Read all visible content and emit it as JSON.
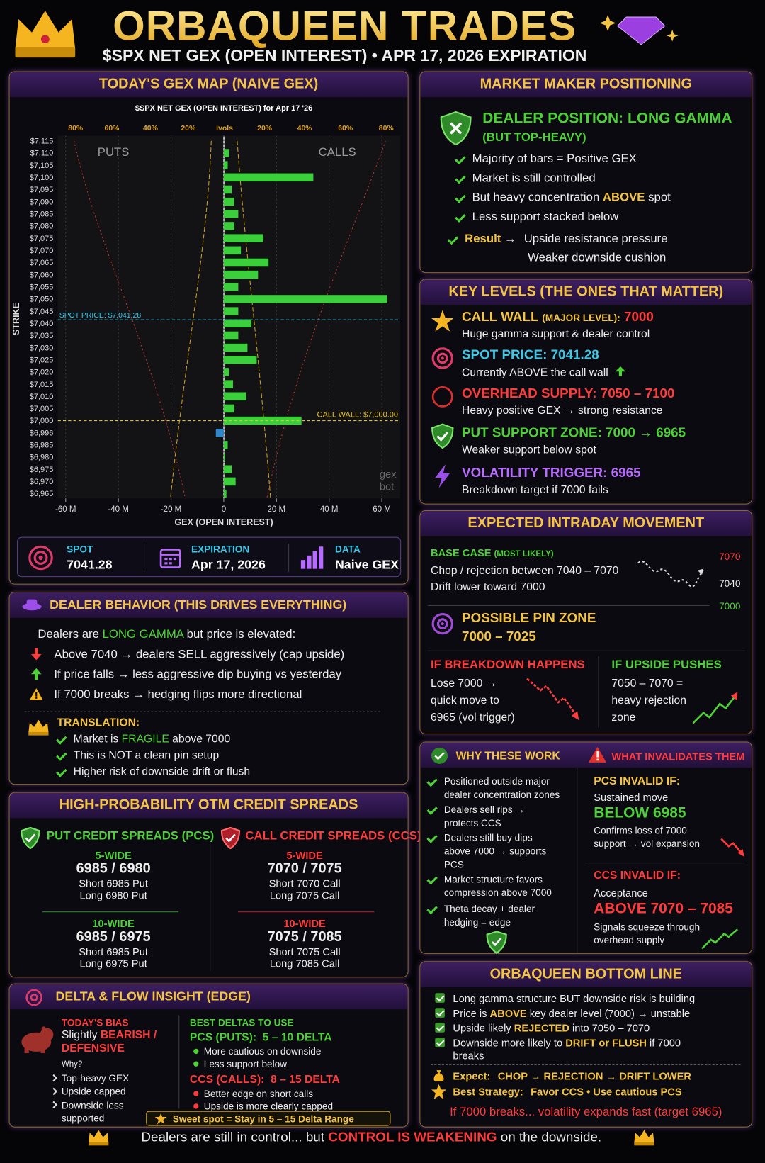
{
  "header": {
    "title": "ORBAQUEEN TRADES",
    "subtitle": "$SPX NET GEX (OPEN INTEREST) • APR 17, 2026 EXPIRATION"
  },
  "gex_map": {
    "heading": "TODAY'S GEX MAP (NAIVE GEX)",
    "stats": [
      {
        "label": "SPOT",
        "value": "7041.28"
      },
      {
        "label": "EXPIRATION",
        "value": "Apr 17, 2026"
      },
      {
        "label": "DATA",
        "value": "Naive GEX"
      }
    ]
  },
  "chart_data": {
    "type": "bar",
    "orientation": "horizontal",
    "title": "$SPX NET GEX (OPEN INTEREST) for Apr 17 '26",
    "y_label": "STRIKE",
    "x_label": "GEX (OPEN INTEREST)",
    "top_axis_labels": [
      "80%",
      "60%",
      "40%",
      "20%",
      "ivols",
      "20%",
      "40%",
      "60%",
      "80%"
    ],
    "categories": [
      "$7,115",
      "$7,110",
      "$7,105",
      "$7,100",
      "$7,095",
      "$7,090",
      "$7,085",
      "$7,080",
      "$7,075",
      "$7,070",
      "$7,065",
      "$7,060",
      "$7,055",
      "$7,050",
      "$7,045",
      "$7,040",
      "$7,035",
      "$7,030",
      "$7,025",
      "$7,020",
      "$7,015",
      "$7,010",
      "$7,005",
      "$7,000",
      "$6,996",
      "$6,985",
      "$6,980",
      "$6,975",
      "$6,970",
      "$6,965"
    ],
    "series": [
      {
        "color": "#3ccf3c",
        "negative_color": "#2f86c8",
        "values": [
          0,
          2,
          1.5,
          34,
          3,
          4,
          5.5,
          4,
          15,
          6.5,
          17,
          13,
          5.5,
          62,
          5.5,
          10.5,
          5.5,
          9,
          12.5,
          2,
          3.5,
          8.5,
          4,
          29.5,
          -3,
          1.5,
          0.5,
          3,
          4.5,
          1
        ]
      }
    ],
    "xlim": [
      -63,
      67
    ],
    "xticks": [
      {
        "value": -60,
        "label": "-60 M"
      },
      {
        "value": -40,
        "label": "-40 M"
      },
      {
        "value": -20,
        "label": "-20 M"
      },
      0,
      {
        "value": 20,
        "label": "20 M"
      },
      {
        "value": 40,
        "label": "40 M"
      },
      {
        "value": 60,
        "label": "60 M"
      }
    ],
    "grid": true,
    "annotations": {
      "puts": "PUTS",
      "calls": "CALLS",
      "spot": "SPOT PRICE: $7,041.28",
      "call_wall": "CALL WALL: $7,000.00"
    },
    "watermark": [
      "gex",
      "bot"
    ]
  },
  "market_maker": {
    "heading": "MARKET MAKER POSITIONING",
    "position": "DEALER POSITION: LONG GAMMA",
    "position_note": "(BUT TOP-HEAVY)",
    "items": [
      "Majority of bars = Positive GEX",
      "Market is still controlled",
      [
        "But heavy concentration ",
        "ABOVE",
        " spot"
      ],
      "Less support stacked below"
    ],
    "result": {
      "label": "Result",
      "arrow": "→",
      "lines": [
        "Upside resistance pressure",
        "Weaker downside cushion"
      ]
    }
  },
  "key_levels": {
    "heading": "KEY LEVELS (THE ONES THAT MATTER)",
    "items": [
      {
        "title": "CALL WALL",
        "qualifier": "(MAJOR LEVEL):",
        "value": "7000",
        "desc": "Huge gamma support & dealer control"
      },
      {
        "title": "SPOT PRICE: 7041.28",
        "desc": "Currently ABOVE the call wall"
      },
      {
        "title": "OVERHEAD SUPPLY: 7050 – 7100",
        "desc": "Heavy positive GEX → strong resistance"
      },
      {
        "title": "PUT SUPPORT ZONE: 7000 → 6965",
        "desc": "Weaker support below spot"
      },
      {
        "title": "VOLATILITY TRIGGER: 6965",
        "desc": "Breakdown target if 7000 fails"
      }
    ]
  },
  "expected": {
    "heading": "EXPECTED INTRADAY MOVEMENT",
    "base_case": "BASE CASE",
    "base_note": "(MOST LIKELY)",
    "base_lines": [
      "Chop / rejection between 7040 – 7070",
      "Drift lower toward 7000"
    ],
    "sketch_labels": [
      "7070",
      "7040",
      "7000"
    ],
    "pin_title": "POSSIBLE PIN ZONE",
    "pin_range": "7000 – 7025",
    "breakdown": {
      "title": "IF BREAKDOWN HAPPENS",
      "lines": [
        "Lose 7000 →",
        "quick move to",
        "6965 (vol trigger)"
      ]
    },
    "upside": {
      "title": "IF UPSIDE PUSHES",
      "lines": [
        "7050 – 7070 =",
        "heavy rejection",
        "zone"
      ]
    }
  },
  "dealer_behavior": {
    "heading": "DEALER BEHAVIOR (THIS DRIVES EVERYTHING)",
    "intro": [
      "Dealers are ",
      "LONG GAMMA",
      " but price is elevated:"
    ],
    "items": [
      "Above 7040 → dealers SELL aggressively (cap upside)",
      "If price falls → less aggressive dip buying vs yesterday",
      "If 7000 breaks → hedging flips more directional"
    ],
    "translation": "TRANSLATION:",
    "translation_items": [
      [
        "Market is ",
        "FRAGILE",
        " above 7000"
      ],
      "This is NOT a clean pin setup",
      "Higher risk of downside drift or flush"
    ]
  },
  "spreads": {
    "heading": "HIGH-PROBABILITY OTM CREDIT SPREADS",
    "pcs": {
      "title": "PUT CREDIT SPREADS (PCS)",
      "groups": [
        {
          "width": "5-WIDE",
          "strikes": "6985 / 6980",
          "short": "Short 6985 Put",
          "long": "Long 6980 Put"
        },
        {
          "width": "10-WIDE",
          "strikes": "6985 / 6975",
          "short": "Short 6985 Put",
          "long": "Long 6975 Put"
        }
      ]
    },
    "ccs": {
      "title": "CALL CREDIT SPREADS (CCS)",
      "groups": [
        {
          "width": "5-WIDE",
          "strikes": "7070 / 7075",
          "short": "Short 7070 Call",
          "long": "Long 7075 Call"
        },
        {
          "width": "10-WIDE",
          "strikes": "7075 / 7085",
          "short": "Short 7075 Call",
          "long": "Long 7085 Call"
        }
      ]
    }
  },
  "why": {
    "heading": "WHY THESE WORK",
    "items": [
      "Positioned outside major dealer concentration zones",
      "Dealers sell rips → protects CCS",
      "Dealers still buy dips above 7000 → supports PCS",
      "Market structure favors compression above 7000",
      "Theta decay + dealer hedging = edge"
    ]
  },
  "invalidation": {
    "heading": "WHAT INVALIDATES THEM",
    "pcs": {
      "title": "PCS INVALID IF:",
      "pre": "Sustained move",
      "level": "BELOW 6985",
      "post": "Confirms loss of 7000 support → vol expansion"
    },
    "ccs": {
      "title": "CCS INVALID IF:",
      "pre": "Acceptance",
      "level": "ABOVE 7070 – 7085",
      "post": "Signals squeeze through overhead supply"
    }
  },
  "delta": {
    "heading": "DELTA & FLOW INSIGHT (EDGE)",
    "bias_title": "TODAY'S BIAS",
    "bias": [
      "Slightly ",
      "BEARISH / DEFENSIVE"
    ],
    "why": "Why?",
    "why_items": [
      "Top-heavy GEX",
      "Upside capped",
      "Downside less supported"
    ],
    "best_title": "BEST DELTAS TO USE",
    "pcs": {
      "title": "PCS (PUTS):",
      "range": "5 – 10 DELTA",
      "items": [
        "More cautious on downside",
        "Less support below"
      ]
    },
    "ccs": {
      "title": "CCS (CALLS):",
      "range": "8 – 15 DELTA",
      "items": [
        "Better edge on short calls",
        "Upside is more clearly capped"
      ]
    },
    "sweet": "Sweet spot = Stay in 5 – 15 Delta Range"
  },
  "bottom_line": {
    "heading": "ORBAQUEEN BOTTOM LINE",
    "items": [
      [
        "Long gamma structure BUT downside risk is building"
      ],
      [
        "Price is ",
        "ABOVE",
        " key dealer level (7000) → unstable"
      ],
      [
        "Upside likely ",
        "REJECTED",
        " into 7050 – 7070"
      ],
      [
        "Downside more likely to ",
        "DRIFT or FLUSH",
        " if 7000 breaks"
      ]
    ],
    "expect": {
      "label": "Expect:",
      "text": "CHOP → REJECTION → DRIFT LOWER"
    },
    "strategy": {
      "label": "Best Strategy:",
      "text": "Favor CCS • Use cautious PCS"
    },
    "warning": "If 7000 breaks... volatility expands fast (target 6965)"
  },
  "footer": [
    "Dealers are still in control... but ",
    "CONTROL IS WEAKENING",
    " on the downside."
  ]
}
